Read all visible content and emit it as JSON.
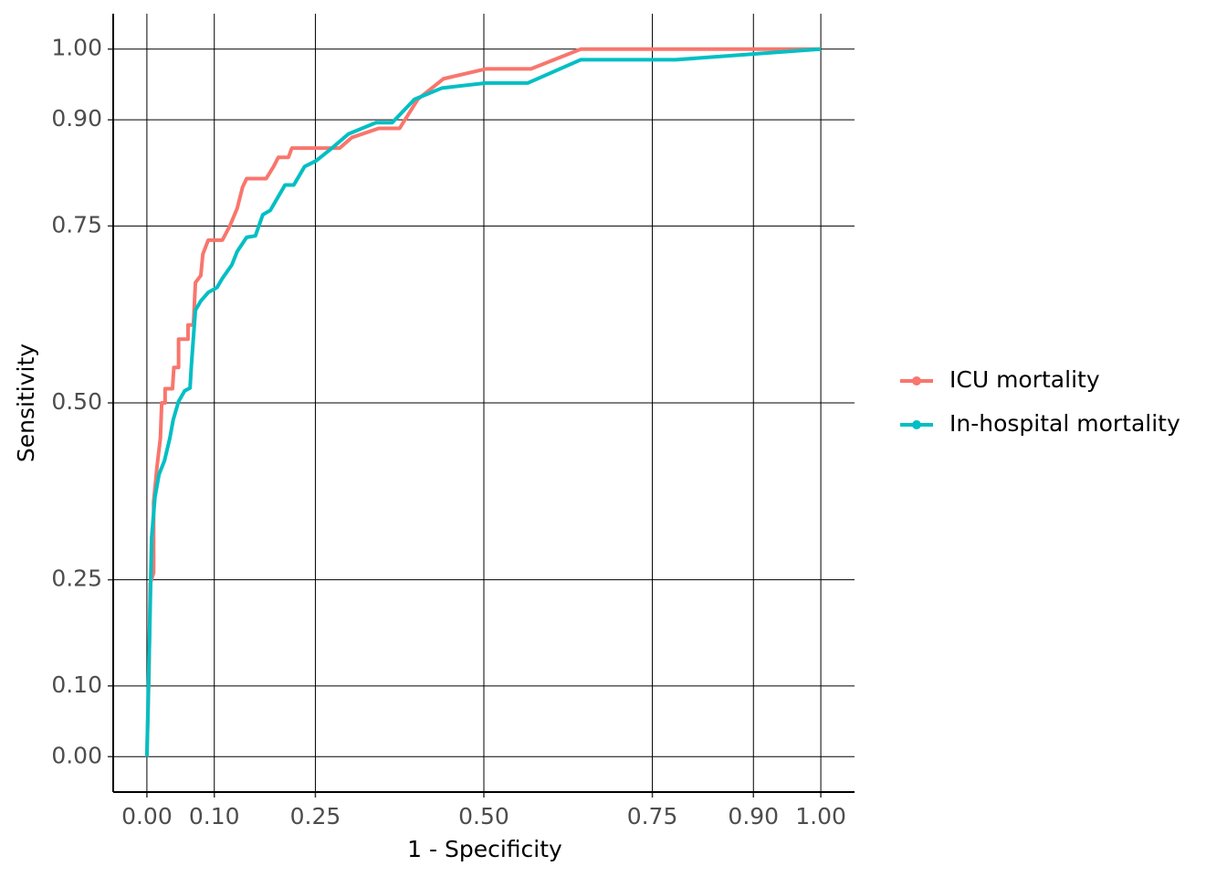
{
  "chart_data": {
    "type": "line",
    "x_label": "1 - Specificity",
    "y_label": "Sensitivity",
    "xlim": [
      -0.05,
      1.05
    ],
    "ylim": [
      -0.05,
      1.05
    ],
    "xticks": [
      {
        "value": 0,
        "label": "0.00"
      },
      {
        "value": 0.1,
        "label": "0.10"
      },
      {
        "value": 0.25,
        "label": "0.25"
      },
      {
        "value": 0.5,
        "label": "0.50"
      },
      {
        "value": 0.75,
        "label": "0.75"
      },
      {
        "value": 0.9,
        "label": "0.90"
      },
      {
        "value": 1,
        "label": "1.00"
      }
    ],
    "yticks": [
      {
        "value": 0,
        "label": "0.00"
      },
      {
        "value": 0.1,
        "label": "0.10"
      },
      {
        "value": 0.25,
        "label": "0.25"
      },
      {
        "value": 0.5,
        "label": "0.50"
      },
      {
        "value": 0.75,
        "label": "0.75"
      },
      {
        "value": 0.9,
        "label": "0.90"
      },
      {
        "value": 1,
        "label": "1.00"
      }
    ],
    "grid": true,
    "legend": "right",
    "series": [
      {
        "name": "ICU mortality",
        "color": "#F8766D",
        "x": [
          0,
          0.003,
          0.005,
          0.01,
          0.01,
          0.015,
          0.02,
          0.022,
          0.027,
          0.027,
          0.038,
          0.04,
          0.047,
          0.047,
          0.061,
          0.061,
          0.069,
          0.072,
          0.08,
          0.083,
          0.091,
          0.112,
          0.123,
          0.134,
          0.142,
          0.148,
          0.177,
          0.188,
          0.195,
          0.21,
          0.215,
          0.286,
          0.304,
          0.344,
          0.375,
          0.402,
          0.44,
          0.503,
          0.57,
          0.644,
          1
        ],
        "values": [
          0,
          0.116,
          0.245,
          0.26,
          0.36,
          0.41,
          0.45,
          0.5,
          0.5,
          0.52,
          0.52,
          0.55,
          0.55,
          0.59,
          0.59,
          0.61,
          0.61,
          0.67,
          0.68,
          0.71,
          0.73,
          0.73,
          0.75,
          0.775,
          0.805,
          0.817,
          0.817,
          0.834,
          0.847,
          0.847,
          0.86,
          0.86,
          0.875,
          0.888,
          0.888,
          0.929,
          0.958,
          0.972,
          0.972,
          1,
          1
        ]
      },
      {
        "name": "In-hospital mortality",
        "color": "#00BFC4",
        "x": [
          0,
          0.003,
          0.005,
          0.007,
          0.012,
          0.018,
          0.026,
          0.034,
          0.039,
          0.047,
          0.056,
          0.064,
          0.066,
          0.072,
          0.08,
          0.091,
          0.104,
          0.112,
          0.126,
          0.134,
          0.148,
          0.161,
          0.172,
          0.183,
          0.205,
          0.218,
          0.234,
          0.251,
          0.272,
          0.299,
          0.34,
          0.364,
          0.397,
          0.438,
          0.503,
          0.565,
          0.644,
          0.785,
          1
        ],
        "values": [
          0,
          0.129,
          0.219,
          0.309,
          0.367,
          0.399,
          0.418,
          0.45,
          0.476,
          0.502,
          0.517,
          0.521,
          0.553,
          0.631,
          0.644,
          0.656,
          0.663,
          0.676,
          0.695,
          0.714,
          0.734,
          0.736,
          0.766,
          0.772,
          0.808,
          0.808,
          0.834,
          0.842,
          0.858,
          0.88,
          0.896,
          0.896,
          0.929,
          0.945,
          0.952,
          0.952,
          0.985,
          0.985,
          1
        ]
      }
    ]
  }
}
